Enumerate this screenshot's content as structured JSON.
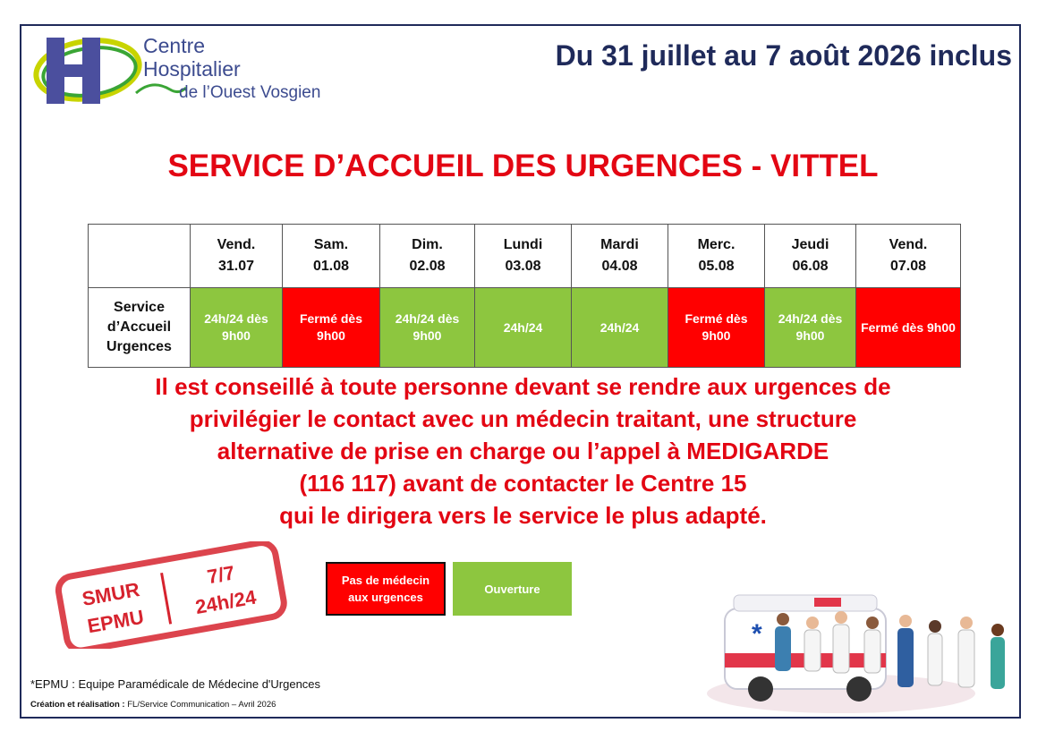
{
  "logo": {
    "lines": [
      "Centre",
      "Hospitalier",
      "de l’Ouest Vosgien"
    ]
  },
  "date_range": "Du 31 juillet au 7 août 2026 inclus",
  "title": "SERVICE D’ACCUEIL DES URGENCES - VITTEL",
  "table": {
    "days": [
      {
        "day": "Vend.",
        "date": "31.07"
      },
      {
        "day": "Sam.",
        "date": "01.08"
      },
      {
        "day": "Dim.",
        "date": "02.08"
      },
      {
        "day": "Lundi",
        "date": "03.08"
      },
      {
        "day": "Mardi",
        "date": "04.08"
      },
      {
        "day": "Merc.",
        "date": "05.08"
      },
      {
        "day": "Jeudi",
        "date": "06.08"
      },
      {
        "day": "Vend.",
        "date": "07.08"
      }
    ],
    "row_label": "Service d’Accueil Urgences",
    "cells": [
      {
        "text": "24h/24 dès 9h00",
        "color": "#8dc63f"
      },
      {
        "text": "Fermé dès 9h00",
        "color": "#ff0000"
      },
      {
        "text": "24h/24 dès 9h00",
        "color": "#8dc63f"
      },
      {
        "text": "24h/24",
        "color": "#8dc63f"
      },
      {
        "text": "24h/24",
        "color": "#8dc63f"
      },
      {
        "text": "Fermé dès 9h00",
        "color": "#ff0000"
      },
      {
        "text": "24h/24 dès 9h00",
        "color": "#8dc63f"
      },
      {
        "text": "Fermé dès 9h00",
        "color": "#ff0000"
      }
    ]
  },
  "message": [
    "Il est conseillé à toute personne devant se rendre aux urgences de",
    "privilégier le contact avec un médecin traitant, une structure",
    "alternative de prise en charge ou l’appel à MEDIGARDE",
    "(116 117) avant de contacter le Centre 15",
    "qui le dirigera vers le service le plus adapté."
  ],
  "stamp": {
    "left": [
      "SMUR",
      "EPMU"
    ],
    "right": [
      "7/7",
      "24h/24"
    ]
  },
  "legend": [
    {
      "label": "Pas de médecin aux urgences",
      "color": "#ff0000"
    },
    {
      "label": "Ouverture",
      "color": "#8dc63f"
    }
  ],
  "footnote": "*EPMU : Equipe Paramédicale de Médecine d'Urgences",
  "credit": {
    "label": "Création et réalisation :",
    "text": "FL/Service Communication – Avril 2026"
  }
}
